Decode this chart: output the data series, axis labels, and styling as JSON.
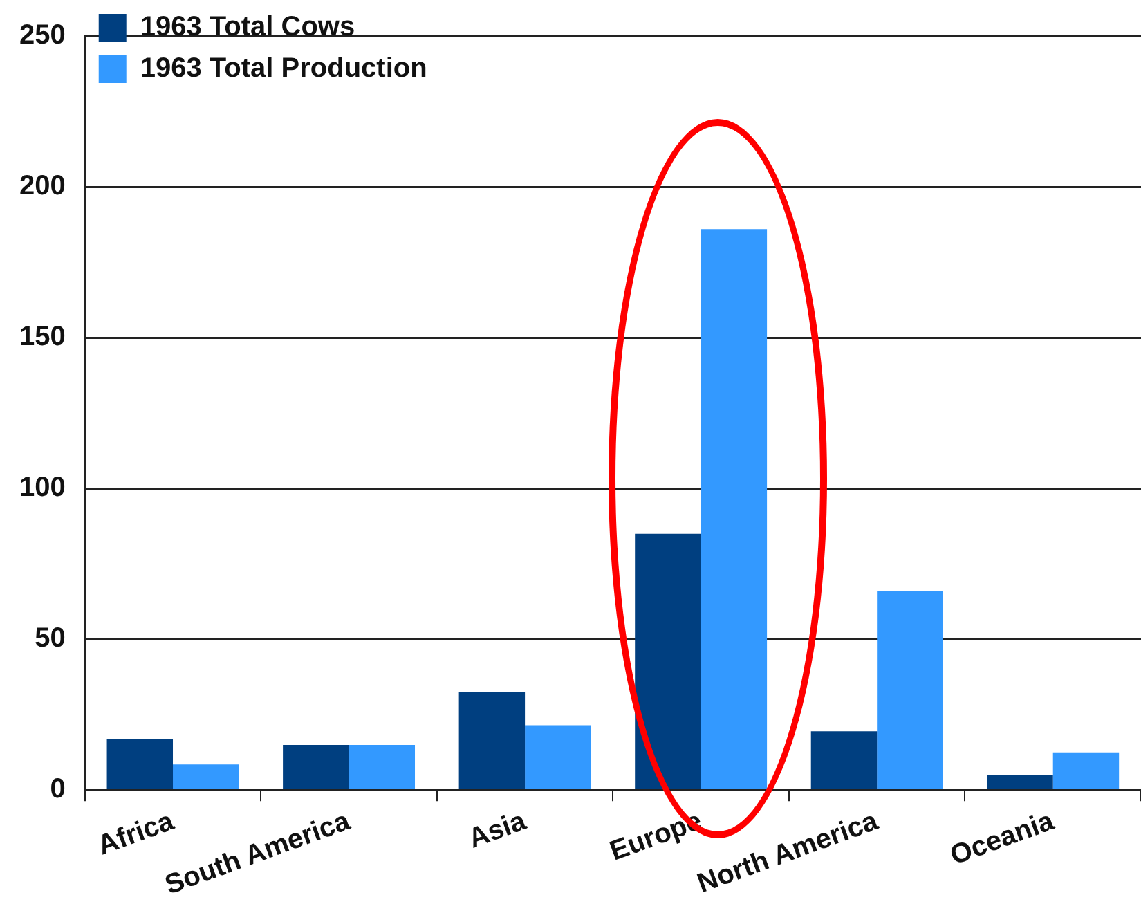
{
  "chart_data": {
    "type": "bar",
    "categories": [
      "Africa",
      "South America",
      "Asia",
      "Europe",
      "North America",
      "Oceania"
    ],
    "series": [
      {
        "name": "1963 Total Cows",
        "color": "#003f80",
        "values": [
          17,
          15,
          32.5,
          85,
          19.5,
          5
        ]
      },
      {
        "name": "1963 Total Production",
        "color": "#3399ff",
        "values": [
          8.5,
          15,
          21.5,
          186,
          66,
          12.5
        ]
      }
    ],
    "ylim": [
      0,
      250
    ],
    "yticks": [
      0,
      50,
      100,
      150,
      200,
      250
    ],
    "grid": "y",
    "legend": "top left"
  }
}
